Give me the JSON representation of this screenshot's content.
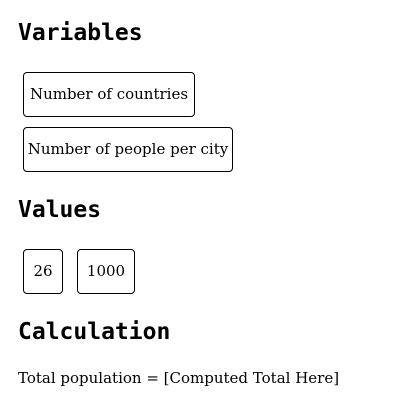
{
  "sections": {
    "variables": {
      "title": "Variables",
      "items": [
        {
          "label": "Number of countries"
        },
        {
          "label": "Number of people per city"
        }
      ]
    },
    "values": {
      "title": "Values",
      "items": [
        {
          "label": "26"
        },
        {
          "label": "1000"
        }
      ]
    },
    "calculation": {
      "title": "Calculation",
      "prefix": "Total population = ",
      "result_placeholder": "[Computed Total Here]"
    }
  }
}
